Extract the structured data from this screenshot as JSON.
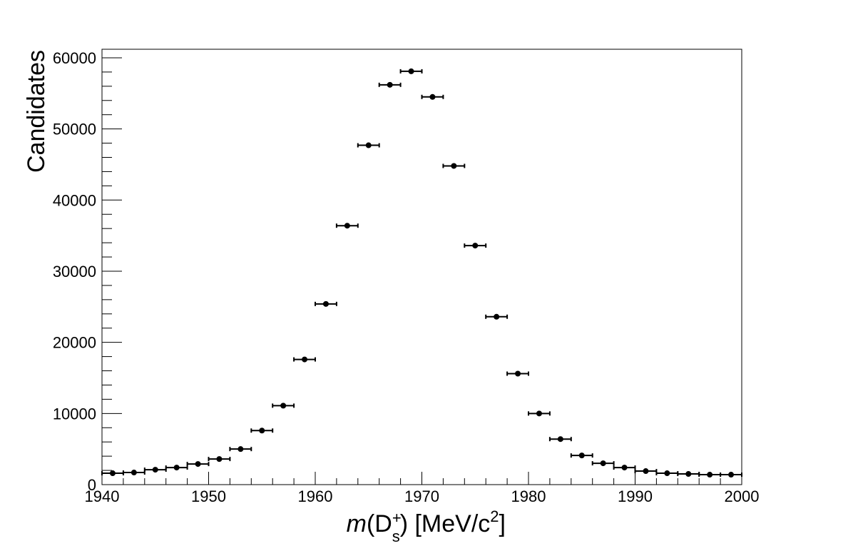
{
  "chart_data": {
    "type": "scatter",
    "title": "",
    "xlabel": {
      "var": "m",
      "open": "(D",
      "sup": "+",
      "sub": "s",
      "close": ") [MeV/c",
      "sup2": "2",
      "end": "]"
    },
    "ylabel": "Candidates",
    "xlim": [
      1940,
      2000
    ],
    "ylim": [
      0,
      61200
    ],
    "x_ticks": [
      "1940",
      "1950",
      "1960",
      "1970",
      "1980",
      "1990",
      "2000"
    ],
    "x_tick_values": [
      1940,
      1950,
      1960,
      1970,
      1980,
      1990,
      2000
    ],
    "y_ticks": [
      "0",
      "10000",
      "20000",
      "30000",
      "40000",
      "50000",
      "60000"
    ],
    "y_tick_values": [
      0,
      10000,
      20000,
      30000,
      40000,
      50000,
      60000
    ],
    "bin_half_width": 1,
    "grid": false,
    "marker_color": "#000000",
    "series": [
      {
        "x": [
          1941,
          1943,
          1945,
          1947,
          1949,
          1951,
          1953,
          1955,
          1957,
          1959,
          1961,
          1963,
          1965,
          1967,
          1969,
          1971,
          1973,
          1975,
          1977,
          1979,
          1981,
          1983,
          1985,
          1987,
          1989,
          1991,
          1993,
          1995,
          1997,
          1999
        ],
        "y": [
          1600,
          1700,
          2100,
          2400,
          2900,
          3600,
          5000,
          7600,
          11100,
          17600,
          25400,
          36400,
          47700,
          56200,
          58100,
          54500,
          44800,
          33600,
          23600,
          15600,
          10000,
          6400,
          4100,
          3000,
          2400,
          1900,
          1600,
          1500,
          1400,
          1400
        ]
      }
    ]
  }
}
